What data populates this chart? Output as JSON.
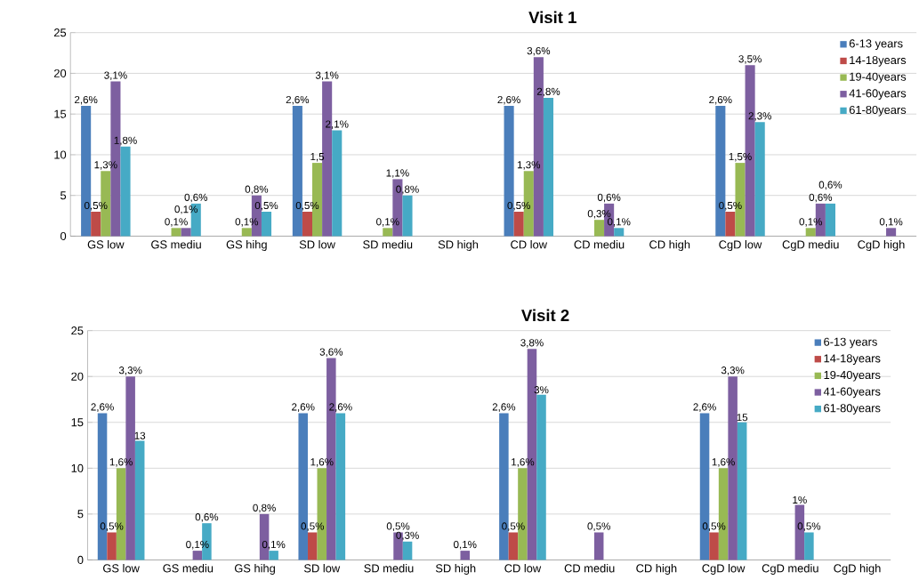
{
  "chart_data": [
    {
      "type": "bar",
      "title": "Visit 1",
      "categories": [
        "GS low",
        "GS mediu",
        "GS hihg",
        "SD low",
        "SD mediu",
        "SD high",
        "CD low",
        "CD mediu",
        "CD high",
        "CgD low",
        "CgD mediu",
        "CgD high"
      ],
      "ylim": [
        0,
        25
      ],
      "yticks": [
        0,
        5,
        10,
        15,
        20,
        25
      ],
      "grid": "y",
      "legend": "top right",
      "series": [
        {
          "name": "6-13 years",
          "color": "#4a7ebb",
          "values": [
            16,
            null,
            null,
            16,
            null,
            null,
            16,
            null,
            null,
            16,
            null,
            null
          ]
        },
        {
          "name": "14-18years",
          "color": "#be4b48",
          "values": [
            3,
            null,
            null,
            3,
            null,
            null,
            3,
            null,
            null,
            3,
            null,
            null
          ]
        },
        {
          "name": "19-40years",
          "color": "#98b954",
          "values": [
            8,
            1,
            1,
            9,
            1,
            null,
            8,
            2,
            null,
            9,
            1,
            null
          ]
        },
        {
          "name": "41-60years",
          "color": "#7d5fa0",
          "values": [
            19,
            1,
            5,
            19,
            7,
            null,
            22,
            4,
            null,
            21,
            4,
            1
          ]
        },
        {
          "name": "61-80years",
          "color": "#46aac5",
          "values": [
            11,
            4,
            3,
            13,
            5,
            null,
            17,
            1,
            null,
            14,
            4,
            null
          ]
        }
      ],
      "annotations": [
        "2,6%",
        "0,5%",
        "1,3%",
        "3,1%",
        "1,8%",
        "0,1%",
        "0,1%",
        "0,6%",
        "0,1%",
        "0,8%",
        "0,5%",
        "2,6%",
        "0,5%",
        "1,5",
        "3,1%",
        "2,1%",
        "0,1%",
        "1,1%",
        "0,8%",
        "2,6%",
        "0,5%",
        "1,3%",
        "3,6%",
        "2,8%",
        "0,3%",
        "0,6%",
        "0,1%",
        "2,6%",
        "0,5%",
        "1,5%",
        "3,5%",
        "2,3%",
        "0,1%",
        "0,6%",
        "0,6%",
        "0,1%"
      ]
    },
    {
      "type": "bar",
      "title": "Visit 2",
      "categories": [
        "GS low",
        "GS mediu",
        "GS hihg",
        "SD low",
        "SD mediu",
        "SD high",
        "CD low",
        "CD mediu",
        "CD high",
        "CgD low",
        "CgD mediu",
        "CgD high"
      ],
      "ylim": [
        0,
        25
      ],
      "yticks": [
        0,
        5,
        10,
        15,
        20,
        25
      ],
      "grid": "y",
      "legend": "top right",
      "series": [
        {
          "name": "6-13 years",
          "color": "#4a7ebb",
          "values": [
            16,
            null,
            null,
            16,
            null,
            null,
            16,
            null,
            null,
            16,
            null,
            null
          ]
        },
        {
          "name": "14-18years",
          "color": "#be4b48",
          "values": [
            3,
            null,
            null,
            3,
            null,
            null,
            3,
            null,
            null,
            3,
            null,
            null
          ]
        },
        {
          "name": "19-40years",
          "color": "#98b954",
          "values": [
            10,
            null,
            null,
            10,
            null,
            null,
            10,
            null,
            null,
            10,
            null,
            null
          ]
        },
        {
          "name": "41-60years",
          "color": "#7d5fa0",
          "values": [
            20,
            1,
            5,
            22,
            3,
            1,
            23,
            3,
            null,
            20,
            6,
            null
          ]
        },
        {
          "name": "61-80years",
          "color": "#46aac5",
          "values": [
            13,
            4,
            1,
            16,
            2,
            null,
            18,
            null,
            null,
            15,
            3,
            null
          ]
        }
      ],
      "annotations": [
        "2,6%",
        "0,5%",
        "1,6%",
        "3,3%",
        "13",
        "0,1%",
        "0,6%",
        "0,8%",
        "0,1%",
        "2,6%",
        "0,5%",
        "1,6%",
        "3,6%",
        "2,6%",
        "0,5%",
        "0,3%",
        "0,1%",
        "2,6%",
        "0,5%",
        "1,6%",
        "3,8%",
        "3%",
        "0,5%",
        "2,6%",
        "0,5%",
        "1,6%",
        "3,3%",
        "15",
        "1%",
        "0,5%"
      ]
    }
  ]
}
